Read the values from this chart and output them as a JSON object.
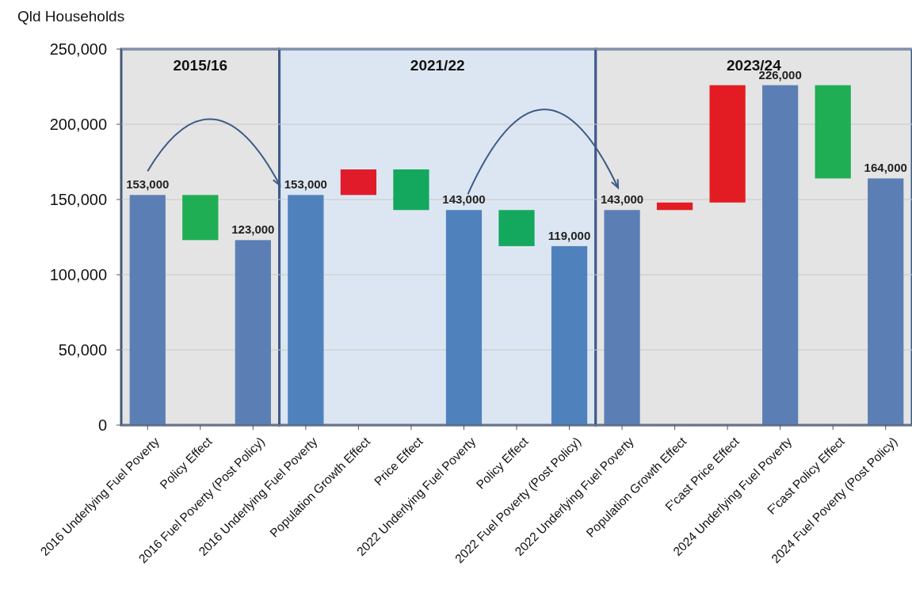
{
  "chart_data": {
    "type": "bar",
    "ylabel": "Qld Households",
    "categories": [
      "2016 Underlying Fuel Poverty",
      "Policy Effect",
      "2016 Fuel Poverty (Post Policy)",
      "2016 Underlying Fuel Poverty",
      "Population Growth Effect",
      "Price Effect",
      "2022 Underlying Fuel Poverty",
      "Policy Effect",
      "2022 Fuel Poverty (Post Policy)",
      "2022 Underlying Fuel Poverty",
      "Population Growth Effect",
      "F'cast Price Effect",
      "2024 Underlying Fuel Poverty",
      "F'cast Policy Effect",
      "2024 Fuel Poverty (Post Policy)"
    ],
    "values": [
      153000,
      30000,
      123000,
      153000,
      17000,
      27000,
      143000,
      24000,
      119000,
      143000,
      5000,
      78000,
      226000,
      62000,
      164000
    ],
    "base": [
      0,
      123000,
      0,
      0,
      153000,
      143000,
      0,
      119000,
      0,
      0,
      143000,
      148000,
      0,
      164000,
      0
    ],
    "colors": [
      "#5b7fb4",
      "#1fae54",
      "#5b7fb4",
      "#4f81bd",
      "#e01b2a",
      "#14a85e",
      "#4f81bd",
      "#14a85e",
      "#4f81bd",
      "#5b7fb4",
      "#e31c23",
      "#e31c23",
      "#5b7fb4",
      "#1fae54",
      "#5b7fb4"
    ],
    "value_labels": [
      "153,000",
      null,
      "123,000",
      "153,000",
      null,
      null,
      "143,000",
      null,
      "119,000",
      "143,000",
      null,
      null,
      "226,000",
      null,
      "164,000"
    ],
    "ylim": [
      0,
      250000
    ],
    "yticks": [
      {
        "value": 0,
        "label": "0"
      },
      {
        "value": 50000,
        "label": "50,000"
      },
      {
        "value": 100000,
        "label": "100,000"
      },
      {
        "value": 150000,
        "label": "150,000"
      },
      {
        "value": 200000,
        "label": "200,000"
      },
      {
        "value": 250000,
        "label": "250,000"
      }
    ],
    "grid": "y",
    "annotations": [
      "2015/16",
      "2021/22",
      "2023/24"
    ]
  }
}
